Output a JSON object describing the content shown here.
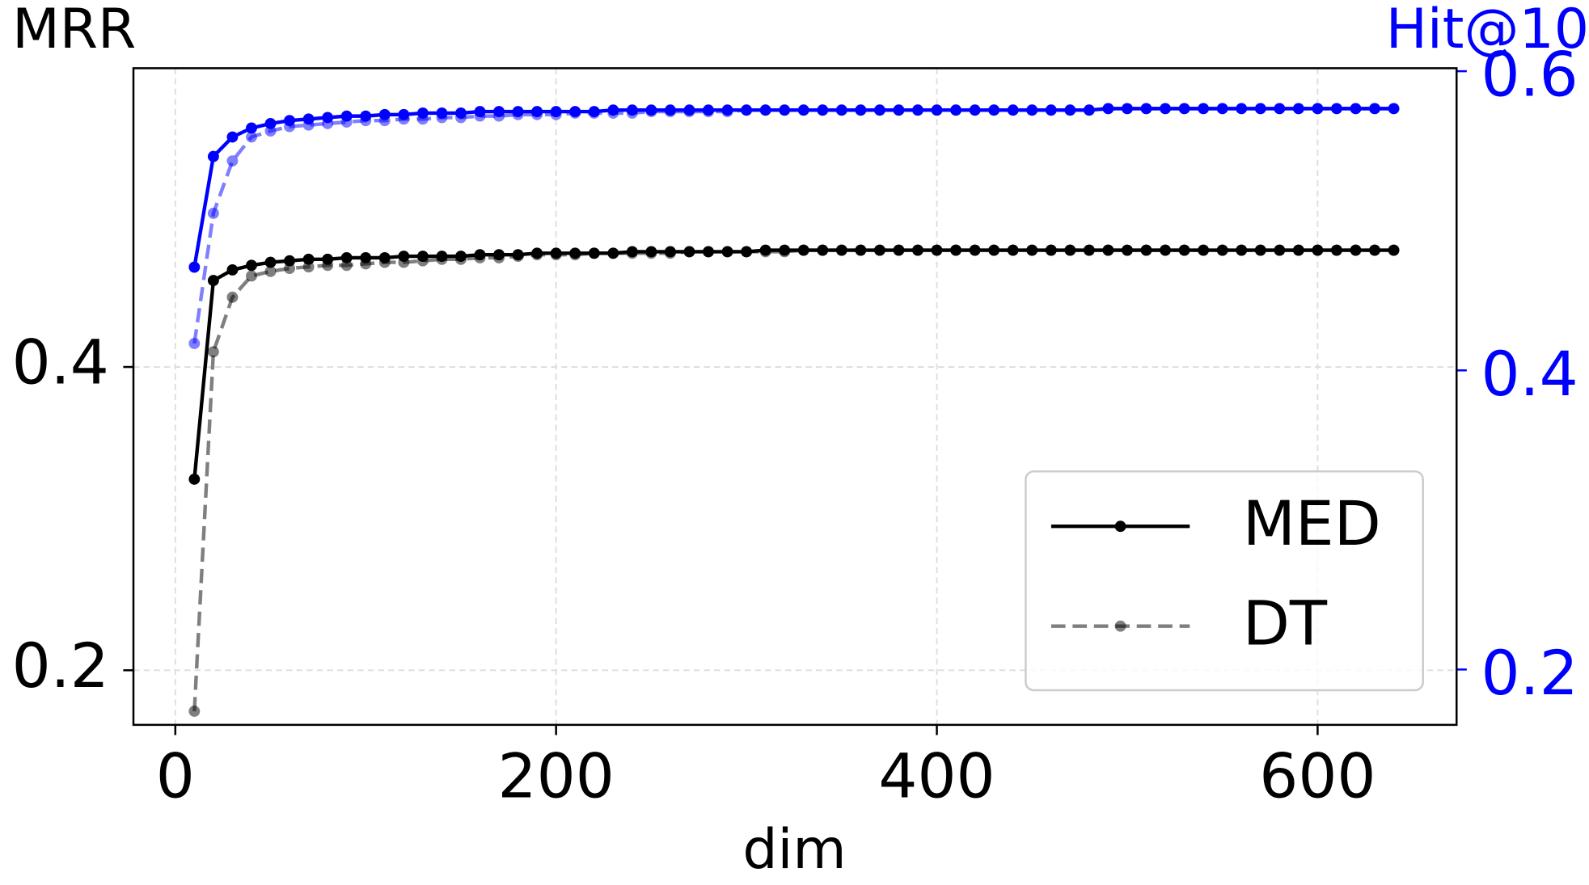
{
  "chart_data": {
    "type": "line",
    "ylabel": "MRR",
    "y2label": "Hit@10",
    "xlabel": "dim",
    "x": [
      10,
      20,
      30,
      40,
      50,
      60,
      70,
      80,
      90,
      100,
      110,
      120,
      130,
      140,
      150,
      160,
      170,
      180,
      190,
      200,
      210,
      220,
      230,
      240,
      250,
      260,
      270,
      280,
      290,
      300,
      310,
      320,
      330,
      340,
      350,
      360,
      370,
      380,
      390,
      400,
      410,
      420,
      430,
      440,
      450,
      460,
      470,
      480,
      490,
      500,
      510,
      520,
      530,
      540,
      550,
      560,
      570,
      580,
      590,
      600,
      610,
      620,
      630,
      640
    ],
    "series": [
      {
        "name": "MED",
        "color": "#000000",
        "opacity": 1,
        "dashed": false,
        "axis": "y",
        "values": [
          0.326,
          0.457,
          0.464,
          0.467,
          0.469,
          0.47,
          0.471,
          0.471,
          0.472,
          0.472,
          0.472,
          0.473,
          0.473,
          0.473,
          0.473,
          0.474,
          0.474,
          0.474,
          0.475,
          0.475,
          0.475,
          0.475,
          0.475,
          0.476,
          0.476,
          0.476,
          0.476,
          0.476,
          0.476,
          0.476,
          0.477,
          0.477,
          0.477,
          0.477,
          0.477,
          0.477,
          0.477,
          0.477,
          0.477,
          0.477,
          0.477,
          0.477,
          0.477,
          0.477,
          0.477,
          0.477,
          0.477,
          0.477,
          0.477,
          0.477,
          0.477,
          0.477,
          0.477,
          0.477,
          0.477,
          0.477,
          0.477,
          0.477,
          0.477,
          0.477,
          0.477,
          0.477,
          0.477,
          0.477
        ]
      },
      {
        "name": "DT",
        "color": "#000000",
        "opacity": 0.5,
        "dashed": true,
        "axis": "y",
        "values": [
          0.173,
          0.41,
          0.446,
          0.46,
          0.463,
          0.465,
          0.466,
          0.467,
          0.467,
          0.468,
          0.469,
          0.469,
          0.47,
          0.471,
          0.471,
          0.472,
          0.472,
          0.473,
          0.474,
          0.474,
          0.474,
          0.475,
          0.475,
          0.475,
          0.475,
          0.475,
          0.476,
          0.476,
          0.476,
          0.476,
          0.476,
          0.476,
          0.477,
          0.477,
          0.477,
          0.477,
          0.477,
          0.477,
          0.477,
          0.477,
          0.477,
          0.477,
          0.477,
          0.477,
          0.477,
          0.477,
          0.477,
          0.477,
          0.477,
          0.477,
          0.477,
          0.477,
          0.477,
          0.477,
          0.477,
          0.477,
          0.477,
          0.477,
          0.477,
          0.477,
          0.477,
          0.477,
          0.477,
          0.477
        ]
      },
      {
        "name": "MED",
        "color": "#0000ff",
        "opacity": 1,
        "dashed": false,
        "axis": "y2",
        "values": [
          0.469,
          0.543,
          0.556,
          0.562,
          0.565,
          0.567,
          0.568,
          0.569,
          0.57,
          0.57,
          0.571,
          0.571,
          0.572,
          0.572,
          0.572,
          0.573,
          0.573,
          0.573,
          0.573,
          0.573,
          0.573,
          0.573,
          0.574,
          0.574,
          0.574,
          0.574,
          0.574,
          0.574,
          0.574,
          0.574,
          0.574,
          0.574,
          0.574,
          0.574,
          0.574,
          0.574,
          0.574,
          0.574,
          0.574,
          0.574,
          0.574,
          0.574,
          0.574,
          0.574,
          0.574,
          0.574,
          0.574,
          0.574,
          0.575,
          0.575,
          0.575,
          0.575,
          0.575,
          0.575,
          0.575,
          0.575,
          0.575,
          0.575,
          0.575,
          0.575,
          0.575,
          0.575,
          0.575,
          0.575
        ]
      },
      {
        "name": "DT",
        "color": "#0000ff",
        "opacity": 0.5,
        "dashed": true,
        "axis": "y2",
        "values": [
          0.418,
          0.505,
          0.54,
          0.556,
          0.56,
          0.563,
          0.564,
          0.565,
          0.566,
          0.567,
          0.567,
          0.568,
          0.568,
          0.569,
          0.569,
          0.57,
          0.57,
          0.571,
          0.571,
          0.571,
          0.572,
          0.572,
          0.572,
          0.572,
          0.573,
          0.573,
          0.573,
          0.573,
          0.573,
          0.574,
          0.574,
          0.574,
          0.574,
          0.574,
          0.574,
          0.574,
          0.574,
          0.574,
          0.574,
          0.574,
          0.574,
          0.574,
          0.574,
          0.574,
          0.574,
          0.574,
          0.574,
          0.574,
          0.575,
          0.575,
          0.575,
          0.575,
          0.575,
          0.575,
          0.575,
          0.575,
          0.575,
          0.575,
          0.575,
          0.575,
          0.575,
          0.575,
          0.575,
          0.575
        ]
      }
    ],
    "legend_series": [
      0,
      1
    ],
    "xlim": [
      -22,
      673
    ],
    "xticks": [
      0,
      200,
      400,
      600
    ],
    "ylim": [
      0.164,
      0.597
    ],
    "yticks": [
      0.2,
      0.4
    ],
    "y2lim": [
      0.163,
      0.602
    ],
    "y2ticks": [
      0.2,
      0.4,
      0.6
    ],
    "y2color": "#0000ff",
    "grid": true,
    "legend": "lower right"
  }
}
